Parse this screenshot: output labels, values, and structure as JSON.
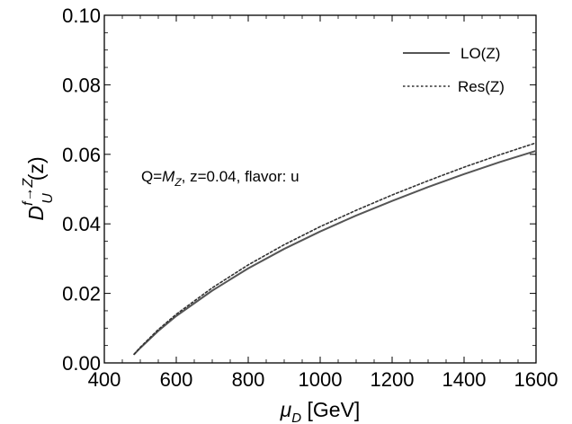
{
  "chart_data": {
    "type": "line",
    "title": "",
    "xlabel": {
      "symbol": "μ",
      "sub": "D",
      "unit": " [GeV]"
    },
    "ylabel": {
      "symbol": "D",
      "sup": "f→Z",
      "sub": "U",
      "arg": "(z)"
    },
    "xlim": [
      400,
      1600
    ],
    "ylim": [
      0,
      0.1
    ],
    "xticks": [
      400,
      600,
      800,
      1000,
      1200,
      1400,
      1600
    ],
    "yticks": [
      0.0,
      0.02,
      0.04,
      0.06,
      0.08,
      0.1
    ],
    "xtick_labels": [
      "400",
      "600",
      "800",
      "1000",
      "1200",
      "1400",
      "1600"
    ],
    "ytick_labels": [
      "0.00",
      "0.02",
      "0.04",
      "0.06",
      "0.08",
      "0.10"
    ],
    "grid": false,
    "legend_position": "top-right",
    "annotation": {
      "pre": "Q=",
      "symbol": "M",
      "sub": "Z",
      "post": ", z=0.04, flavor: u"
    },
    "series": [
      {
        "name": "LO(Z)",
        "style": "solid",
        "color": "#555555",
        "x": [
          483,
          500,
          550,
          600,
          700,
          800,
          900,
          1000,
          1100,
          1200,
          1300,
          1400,
          1500,
          1600
        ],
        "y": [
          0.0025,
          0.0043,
          0.0092,
          0.0135,
          0.0208,
          0.0272,
          0.0328,
          0.0378,
          0.0424,
          0.0466,
          0.0506,
          0.0543,
          0.0578,
          0.061
        ]
      },
      {
        "name": "Res(Z)",
        "style": "dotted",
        "color": "#333333",
        "x": [
          483,
          500,
          550,
          600,
          700,
          800,
          900,
          1000,
          1100,
          1200,
          1300,
          1400,
          1500,
          1600
        ],
        "y": [
          0.0025,
          0.0045,
          0.0096,
          0.014,
          0.0216,
          0.0282,
          0.034,
          0.0392,
          0.0439,
          0.0483,
          0.0524,
          0.0563,
          0.0599,
          0.0633
        ]
      }
    ]
  }
}
